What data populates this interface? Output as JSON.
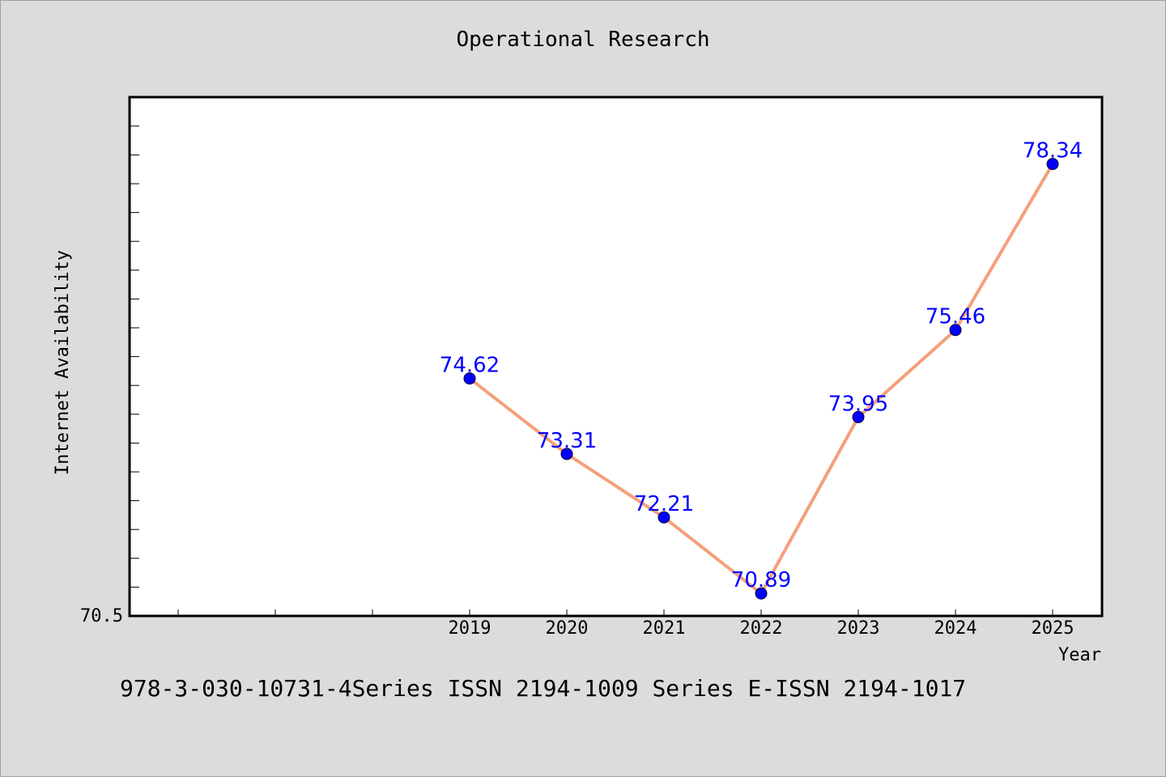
{
  "footer_text": "978-3-030-10731-4Series ISSN 2194-1009 Series E-ISSN 2194-1017",
  "chart_data": {
    "type": "line",
    "title": "Operational Research",
    "xlabel": "Year",
    "ylabel": "Internet Availability",
    "x": [
      "2019",
      "2020",
      "2021",
      "2022",
      "2023",
      "2024",
      "2025"
    ],
    "series": [
      {
        "values": [
          74.62,
          73.31,
          72.21,
          70.89,
          73.95,
          75.46,
          78.34
        ]
      }
    ],
    "y_tick_label": "70.5",
    "ylim": [
      70.5,
      79.5
    ],
    "line_color": "#f4a07a",
    "marker_color": "#0000ff",
    "label_color": "#0000ff",
    "grid": false
  }
}
